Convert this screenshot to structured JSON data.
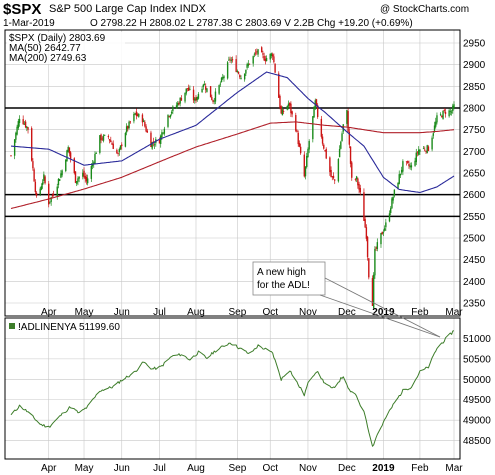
{
  "header": {
    "symbol": "$SPX",
    "name": "S&P 500 Large Cap Index  INDX",
    "date": "1-Mar-2019",
    "ohlc": "O 2798.22  H 2808.02  L 2787.38  C 2803.69  V 2.2B  Chg +19.20 (+0.69%)",
    "brand": "@ StockCharts.com"
  },
  "colors": {
    "up": "#1a8a1a",
    "down": "#cc1414",
    "ma50": "#2a2a9a",
    "ma200": "#b0202a",
    "adl": "#3d7d2a",
    "grid": "#c8c8c8"
  },
  "chart_data": [
    {
      "type": "candlestick",
      "legend": [
        "$SPX (Daily) 2803.69",
        "MA(50) 2642.77",
        "MA(200) 2749.63"
      ],
      "legend_placement": "top-left",
      "x_start": "2018-03-02",
      "x_end": "2019-03-01",
      "ylim": [
        2320,
        2980
      ],
      "yticks": [
        2350,
        2400,
        2450,
        2500,
        2550,
        2600,
        2650,
        2700,
        2750,
        2800,
        2850,
        2900,
        2950
      ],
      "xticks": [
        {
          "label": "Apr",
          "date": "2018-04-02"
        },
        {
          "label": "May",
          "date": "2018-05-01"
        },
        {
          "label": "Jun",
          "date": "2018-06-01"
        },
        {
          "label": "Jul",
          "date": "2018-07-02"
        },
        {
          "label": "Aug",
          "date": "2018-08-01"
        },
        {
          "label": "Sep",
          "date": "2018-09-04"
        },
        {
          "label": "Oct",
          "date": "2018-10-01"
        },
        {
          "label": "Nov",
          "date": "2018-11-01"
        },
        {
          "label": "Dec",
          "date": "2018-12-03"
        },
        {
          "label": "2019",
          "date": "2019-01-02",
          "bold": true
        },
        {
          "label": "Feb",
          "date": "2019-02-01"
        },
        {
          "label": "Mar",
          "date": "2019-03-01"
        }
      ],
      "horizontal_lines": [
        2800,
        2600,
        2550
      ],
      "close_series": [
        [
          "2018-03-02",
          2690
        ],
        [
          "2018-03-09",
          2780
        ],
        [
          "2018-03-13",
          2765
        ],
        [
          "2018-03-16",
          2752
        ],
        [
          "2018-03-23",
          2590
        ],
        [
          "2018-03-29",
          2640
        ],
        [
          "2018-04-02",
          2582
        ],
        [
          "2018-04-06",
          2604
        ],
        [
          "2018-04-13",
          2656
        ],
        [
          "2018-04-18",
          2708
        ],
        [
          "2018-04-24",
          2634
        ],
        [
          "2018-04-30",
          2648
        ],
        [
          "2018-05-03",
          2630
        ],
        [
          "2018-05-08",
          2672
        ],
        [
          "2018-05-14",
          2730
        ],
        [
          "2018-05-21",
          2733
        ],
        [
          "2018-05-29",
          2690
        ],
        [
          "2018-06-04",
          2746
        ],
        [
          "2018-06-12",
          2786
        ],
        [
          "2018-06-18",
          2774
        ],
        [
          "2018-06-25",
          2718
        ],
        [
          "2018-07-02",
          2726
        ],
        [
          "2018-07-09",
          2784
        ],
        [
          "2018-07-17",
          2810
        ],
        [
          "2018-07-25",
          2846
        ],
        [
          "2018-07-31",
          2816
        ],
        [
          "2018-08-07",
          2858
        ],
        [
          "2018-08-15",
          2818
        ],
        [
          "2018-08-24",
          2875
        ],
        [
          "2018-08-29",
          2914
        ],
        [
          "2018-09-07",
          2872
        ],
        [
          "2018-09-14",
          2905
        ],
        [
          "2018-09-20",
          2930
        ],
        [
          "2018-09-27",
          2914
        ],
        [
          "2018-10-03",
          2925
        ],
        [
          "2018-10-05",
          2885
        ],
        [
          "2018-10-10",
          2785
        ],
        [
          "2018-10-16",
          2810
        ],
        [
          "2018-10-22",
          2755
        ],
        [
          "2018-10-29",
          2641
        ],
        [
          "2018-11-02",
          2724
        ],
        [
          "2018-11-07",
          2813
        ],
        [
          "2018-11-13",
          2722
        ],
        [
          "2018-11-20",
          2641
        ],
        [
          "2018-11-23",
          2632
        ],
        [
          "2018-11-30",
          2760
        ],
        [
          "2018-12-03",
          2790
        ],
        [
          "2018-12-07",
          2633
        ],
        [
          "2018-12-11",
          2636
        ],
        [
          "2018-12-14",
          2600
        ],
        [
          "2018-12-19",
          2506
        ],
        [
          "2018-12-21",
          2416
        ],
        [
          "2018-12-24",
          2351
        ],
        [
          "2018-12-26",
          2467
        ],
        [
          "2018-12-31",
          2506
        ],
        [
          "2019-01-04",
          2531
        ],
        [
          "2019-01-10",
          2596
        ],
        [
          "2019-01-18",
          2670
        ],
        [
          "2019-01-25",
          2664
        ],
        [
          "2019-01-31",
          2704
        ],
        [
          "2019-02-08",
          2707
        ],
        [
          "2019-02-15",
          2776
        ],
        [
          "2019-02-22",
          2792
        ],
        [
          "2019-02-27",
          2792
        ],
        [
          "2019-03-01",
          2804
        ]
      ],
      "ma50_series": [
        [
          "2018-03-02",
          2712
        ],
        [
          "2018-04-02",
          2705
        ],
        [
          "2018-05-01",
          2668
        ],
        [
          "2018-06-01",
          2678
        ],
        [
          "2018-07-02",
          2728
        ],
        [
          "2018-08-01",
          2760
        ],
        [
          "2018-09-04",
          2836
        ],
        [
          "2018-09-28",
          2883
        ],
        [
          "2018-10-15",
          2870
        ],
        [
          "2018-11-01",
          2822
        ],
        [
          "2018-11-15",
          2790
        ],
        [
          "2018-12-03",
          2745
        ],
        [
          "2018-12-17",
          2712
        ],
        [
          "2019-01-02",
          2640
        ],
        [
          "2019-01-15",
          2612
        ],
        [
          "2019-02-01",
          2605
        ],
        [
          "2019-02-15",
          2618
        ],
        [
          "2019-03-01",
          2643
        ]
      ],
      "ma200_series": [
        [
          "2018-03-02",
          2568
        ],
        [
          "2018-04-02",
          2590
        ],
        [
          "2018-05-01",
          2613
        ],
        [
          "2018-06-01",
          2640
        ],
        [
          "2018-07-02",
          2676
        ],
        [
          "2018-08-01",
          2710
        ],
        [
          "2018-09-04",
          2740
        ],
        [
          "2018-10-01",
          2765
        ],
        [
          "2018-10-22",
          2768
        ],
        [
          "2018-11-15",
          2760
        ],
        [
          "2018-12-03",
          2756
        ],
        [
          "2019-01-02",
          2743
        ],
        [
          "2019-02-01",
          2743
        ],
        [
          "2019-02-15",
          2746
        ],
        [
          "2019-03-01",
          2750
        ]
      ]
    },
    {
      "type": "line",
      "legend": [
        "!ADLINENYA 51199.60"
      ],
      "legend_placement": "top-left",
      "x_start": "2018-03-02",
      "x_end": "2019-03-01",
      "ylim": [
        48050,
        51500
      ],
      "yticks": [
        48500,
        49000,
        49500,
        50000,
        50500,
        51000
      ],
      "series": [
        [
          "2018-03-02",
          49120
        ],
        [
          "2018-03-09",
          49350
        ],
        [
          "2018-03-16",
          49200
        ],
        [
          "2018-03-26",
          48900
        ],
        [
          "2018-04-02",
          48830
        ],
        [
          "2018-04-12",
          49120
        ],
        [
          "2018-04-20",
          49330
        ],
        [
          "2018-04-27",
          49170
        ],
        [
          "2018-05-04",
          49330
        ],
        [
          "2018-05-14",
          49720
        ],
        [
          "2018-05-25",
          49820
        ],
        [
          "2018-06-01",
          49980
        ],
        [
          "2018-06-11",
          50160
        ],
        [
          "2018-06-19",
          50420
        ],
        [
          "2018-06-26",
          50250
        ],
        [
          "2018-07-03",
          50300
        ],
        [
          "2018-07-12",
          50560
        ],
        [
          "2018-07-20",
          50610
        ],
        [
          "2018-07-27",
          50480
        ],
        [
          "2018-08-03",
          50660
        ],
        [
          "2018-08-10",
          50520
        ],
        [
          "2018-08-17",
          50700
        ],
        [
          "2018-08-29",
          50900
        ],
        [
          "2018-09-07",
          50740
        ],
        [
          "2018-09-14",
          50620
        ],
        [
          "2018-09-21",
          50820
        ],
        [
          "2018-09-28",
          50720
        ],
        [
          "2018-10-03",
          50640
        ],
        [
          "2018-10-10",
          50000
        ],
        [
          "2018-10-17",
          50230
        ],
        [
          "2018-10-24",
          49870
        ],
        [
          "2018-10-29",
          49620
        ],
        [
          "2018-11-02",
          49980
        ],
        [
          "2018-11-08",
          50200
        ],
        [
          "2018-11-15",
          49900
        ],
        [
          "2018-11-21",
          49760
        ],
        [
          "2018-11-30",
          50080
        ],
        [
          "2018-12-04",
          49760
        ],
        [
          "2018-12-11",
          49580
        ],
        [
          "2018-12-18",
          49120
        ],
        [
          "2018-12-24",
          48350
        ],
        [
          "2018-12-28",
          48650
        ],
        [
          "2019-01-04",
          49060
        ],
        [
          "2019-01-11",
          49420
        ],
        [
          "2019-01-18",
          49720
        ],
        [
          "2019-01-25",
          49820
        ],
        [
          "2019-02-01",
          50180
        ],
        [
          "2019-02-08",
          50300
        ],
        [
          "2019-02-15",
          50760
        ],
        [
          "2019-02-22",
          50980
        ],
        [
          "2019-02-27",
          51130
        ],
        [
          "2019-03-01",
          51200
        ]
      ]
    }
  ],
  "annotation": {
    "text_line1": "A new high",
    "text_line2": "for the ADL!"
  }
}
